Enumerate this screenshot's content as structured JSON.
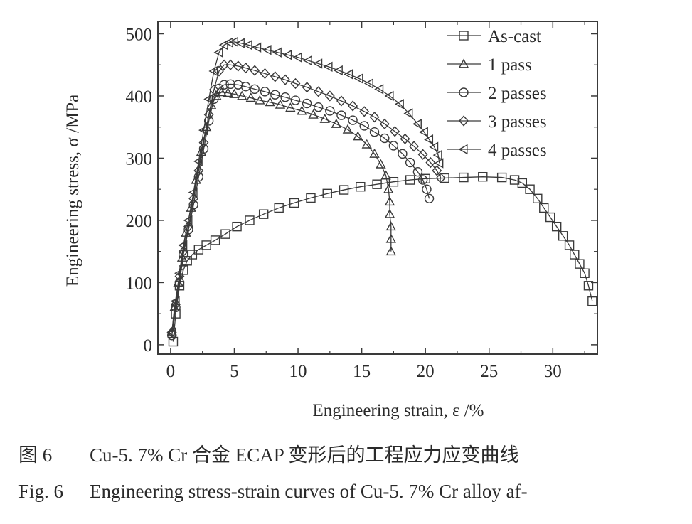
{
  "chart_data": {
    "type": "line",
    "xlabel": "Engineering strain,  ε /%",
    "ylabel": "Engineering stress,  σ /MPa",
    "xlim": [
      -1,
      33.5
    ],
    "ylim": [
      -15,
      520
    ],
    "xticks": [
      0,
      5,
      10,
      15,
      20,
      25,
      30
    ],
    "yticks": [
      0,
      100,
      200,
      300,
      400,
      500
    ],
    "grid": false,
    "legend_position": "top-right",
    "series": [
      {
        "name": "As-cast",
        "marker": "square",
        "x": [
          0.2,
          0.4,
          0.7,
          1.0,
          1.3,
          1.7,
          2.2,
          2.8,
          3.5,
          4.3,
          5.2,
          6.2,
          7.3,
          8.5,
          9.7,
          11.0,
          12.3,
          13.6,
          14.9,
          16.2,
          17.5,
          18.8,
          20.0,
          21.5,
          23.0,
          24.5,
          26.0,
          27.0,
          27.6,
          28.2,
          28.8,
          29.3,
          29.8,
          30.3,
          30.8,
          31.3,
          31.7,
          32.1,
          32.5,
          32.8,
          33.1
        ],
        "y": [
          5,
          50,
          95,
          120,
          135,
          145,
          153,
          160,
          168,
          178,
          190,
          200,
          210,
          220,
          228,
          236,
          243,
          249,
          254,
          258,
          262,
          265,
          267,
          268,
          269,
          270,
          269,
          265,
          260,
          250,
          235,
          220,
          205,
          190,
          175,
          160,
          145,
          130,
          115,
          95,
          70
        ]
      },
      {
        "name": "1 pass",
        "marker": "triangle-up",
        "x": [
          0.1,
          0.3,
          0.6,
          0.9,
          1.2,
          1.6,
          2.0,
          2.4,
          2.8,
          3.2,
          3.6,
          4.0,
          4.5,
          5.0,
          5.6,
          6.3,
          7.0,
          7.8,
          8.6,
          9.4,
          10.3,
          11.2,
          12.1,
          13.0,
          13.9,
          14.7,
          15.4,
          16.0,
          16.5,
          16.9,
          17.1,
          17.2,
          17.2,
          17.3,
          17.3,
          17.3
        ],
        "y": [
          20,
          60,
          100,
          140,
          180,
          220,
          265,
          310,
          350,
          385,
          400,
          406,
          405,
          403,
          400,
          397,
          393,
          390,
          386,
          381,
          376,
          370,
          363,
          355,
          346,
          335,
          322,
          307,
          290,
          272,
          250,
          230,
          210,
          190,
          170,
          150
        ]
      },
      {
        "name": "2 passes",
        "marker": "circle",
        "x": [
          0.1,
          0.4,
          0.7,
          1.0,
          1.4,
          1.8,
          2.2,
          2.6,
          3.0,
          3.4,
          3.8,
          4.2,
          4.7,
          5.3,
          5.9,
          6.6,
          7.4,
          8.2,
          9.0,
          9.8,
          10.7,
          11.6,
          12.5,
          13.4,
          14.3,
          15.2,
          16.0,
          16.8,
          17.5,
          18.2,
          18.8,
          19.4,
          19.8,
          20.1,
          20.3
        ],
        "y": [
          15,
          60,
          100,
          145,
          185,
          225,
          270,
          315,
          360,
          395,
          412,
          418,
          419,
          418,
          415,
          411,
          407,
          402,
          398,
          393,
          388,
          382,
          376,
          369,
          361,
          352,
          342,
          332,
          320,
          307,
          293,
          278,
          265,
          250,
          235
        ]
      },
      {
        "name": "3 passes",
        "marker": "diamond",
        "x": [
          0.1,
          0.4,
          0.7,
          1.0,
          1.4,
          1.8,
          2.2,
          2.6,
          3.0,
          3.4,
          3.8,
          4.2,
          4.7,
          5.3,
          5.9,
          6.6,
          7.4,
          8.2,
          9.0,
          9.8,
          10.7,
          11.6,
          12.5,
          13.4,
          14.3,
          15.2,
          16.0,
          16.8,
          17.6,
          18.4,
          19.1,
          19.8,
          20.4,
          20.9,
          21.2
        ],
        "y": [
          20,
          65,
          110,
          150,
          190,
          235,
          280,
          325,
          370,
          410,
          440,
          450,
          450,
          448,
          445,
          441,
          436,
          431,
          426,
          420,
          414,
          407,
          400,
          392,
          384,
          375,
          366,
          355,
          343,
          331,
          319,
          306,
          293,
          280,
          268
        ]
      },
      {
        "name": "4 passes",
        "marker": "triangle-left",
        "x": [
          0.1,
          0.4,
          0.7,
          1.0,
          1.4,
          1.8,
          2.2,
          2.6,
          3.0,
          3.4,
          3.8,
          4.2,
          4.6,
          5.0,
          5.5,
          6.1,
          6.8,
          7.6,
          8.4,
          9.2,
          10.0,
          10.8,
          11.6,
          12.4,
          13.2,
          14.0,
          14.8,
          15.6,
          16.4,
          17.2,
          18.0,
          18.7,
          19.4,
          19.9,
          20.3,
          20.7,
          21.0,
          21.1
        ],
        "y": [
          20,
          70,
          115,
          160,
          200,
          245,
          295,
          345,
          395,
          440,
          470,
          482,
          486,
          487,
          485,
          482,
          478,
          474,
          470,
          466,
          462,
          457,
          452,
          447,
          441,
          435,
          428,
          420,
          411,
          400,
          387,
          372,
          355,
          342,
          330,
          318,
          305,
          292
        ]
      }
    ]
  },
  "caption": {
    "zh_num": "图 6",
    "zh_text": "Cu-5. 7% Cr 合金 ECAP 变形后的工程应力应变曲线",
    "en_num": "Fig. 6",
    "en_text": "Engineering stress-strain curves of Cu-5. 7% Cr alloy af-"
  }
}
